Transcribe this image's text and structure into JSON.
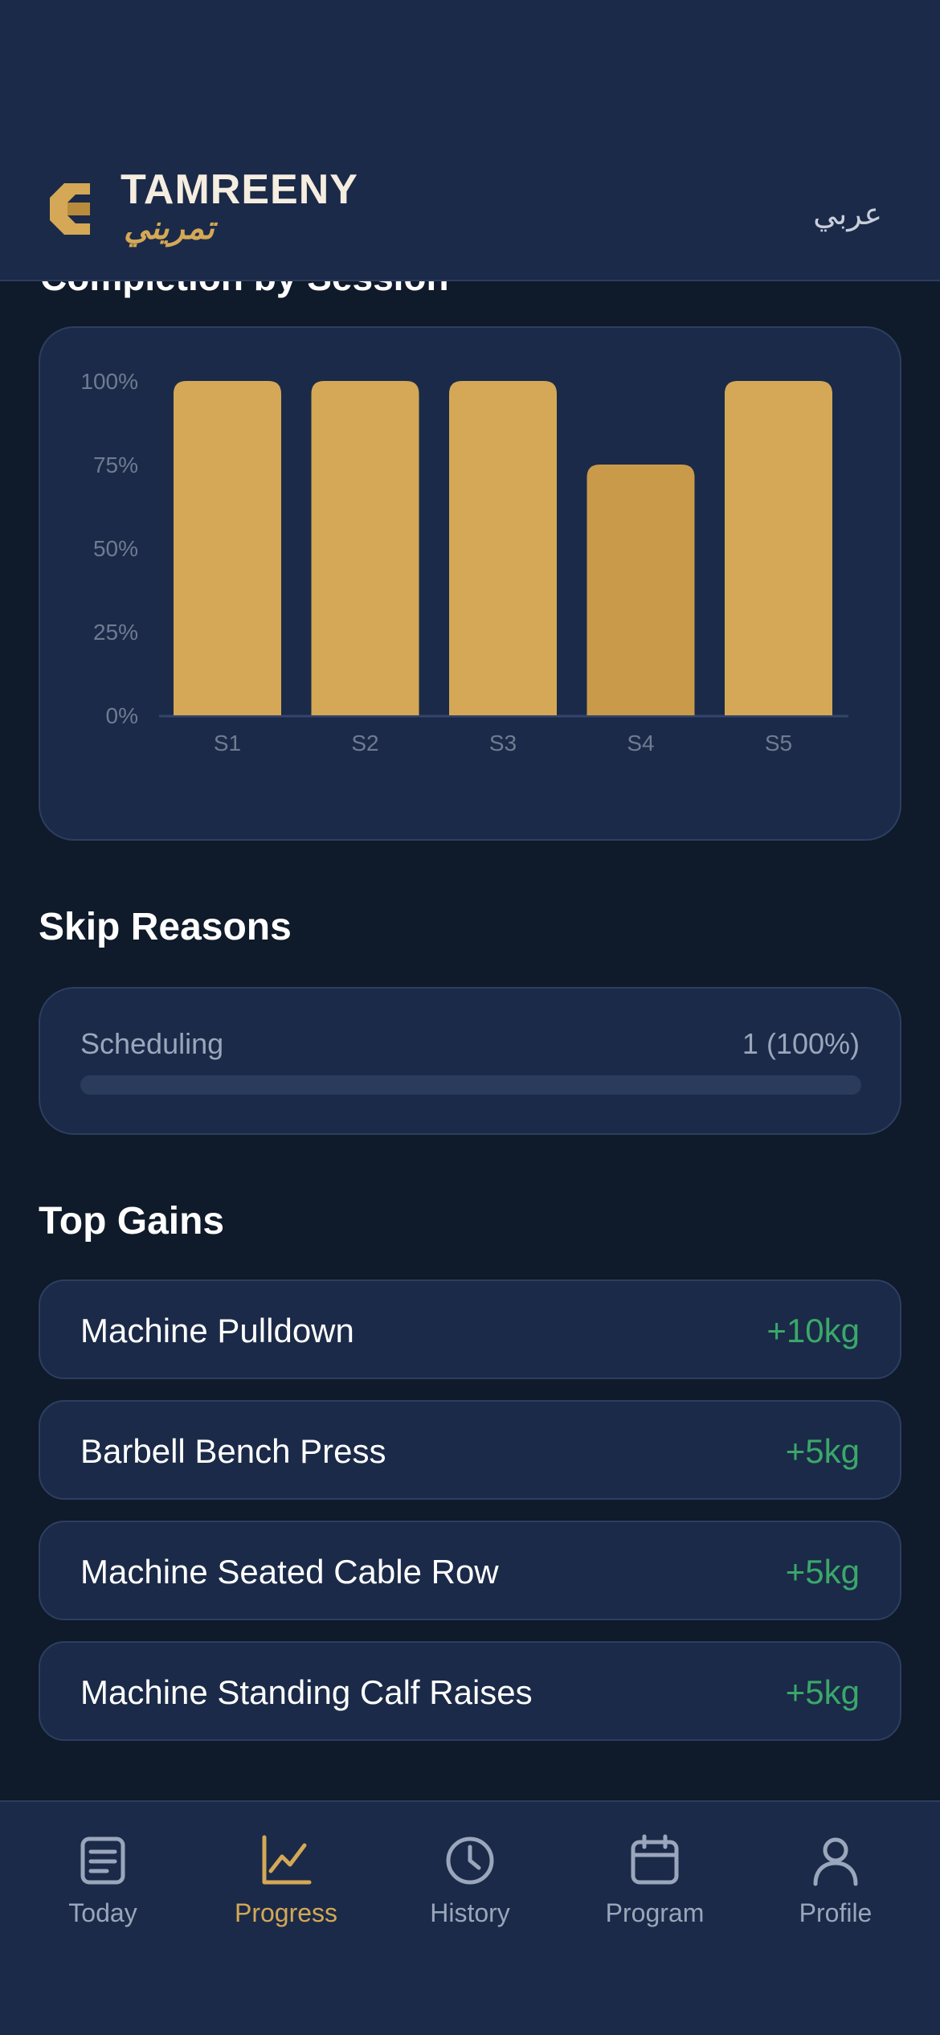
{
  "header": {
    "brand_en": "TAMREENY",
    "brand_ar": "تمريني",
    "language_toggle": "عربي",
    "peek_title": "Completion by Session"
  },
  "colors": {
    "background": "#0f1a2a",
    "card": "#1b2a48",
    "accent": "#d4a856",
    "gain_positive": "#3aa86a",
    "muted_text": "#9aa6bb"
  },
  "chart_data": {
    "type": "bar",
    "categories": [
      "S1",
      "S2",
      "S3",
      "S4",
      "S5"
    ],
    "values": [
      100,
      100,
      100,
      75,
      100
    ],
    "y_ticks": [
      "0%",
      "25%",
      "50%",
      "75%",
      "100%"
    ],
    "ylim": [
      0,
      100
    ],
    "grid": false
  },
  "skip_reasons": {
    "title": "Skip Reasons",
    "items": [
      {
        "label": "Scheduling",
        "value": "1 (100%)",
        "fraction": 1.0
      }
    ]
  },
  "top_gains": {
    "title": "Top Gains",
    "items": [
      {
        "name": "Machine Pulldown",
        "gain": "+10kg"
      },
      {
        "name": "Barbell Bench Press",
        "gain": "+5kg"
      },
      {
        "name": "Machine Seated Cable Row",
        "gain": "+5kg"
      },
      {
        "name": "Machine Standing Calf Raises",
        "gain": "+5kg"
      }
    ]
  },
  "nav": {
    "items": [
      {
        "label": "Today",
        "icon": "clipboard-icon",
        "active": false
      },
      {
        "label": "Progress",
        "icon": "chart-icon",
        "active": true
      },
      {
        "label": "History",
        "icon": "clock-icon",
        "active": false
      },
      {
        "label": "Program",
        "icon": "calendar-icon",
        "active": false
      },
      {
        "label": "Profile",
        "icon": "user-icon",
        "active": false
      }
    ]
  }
}
